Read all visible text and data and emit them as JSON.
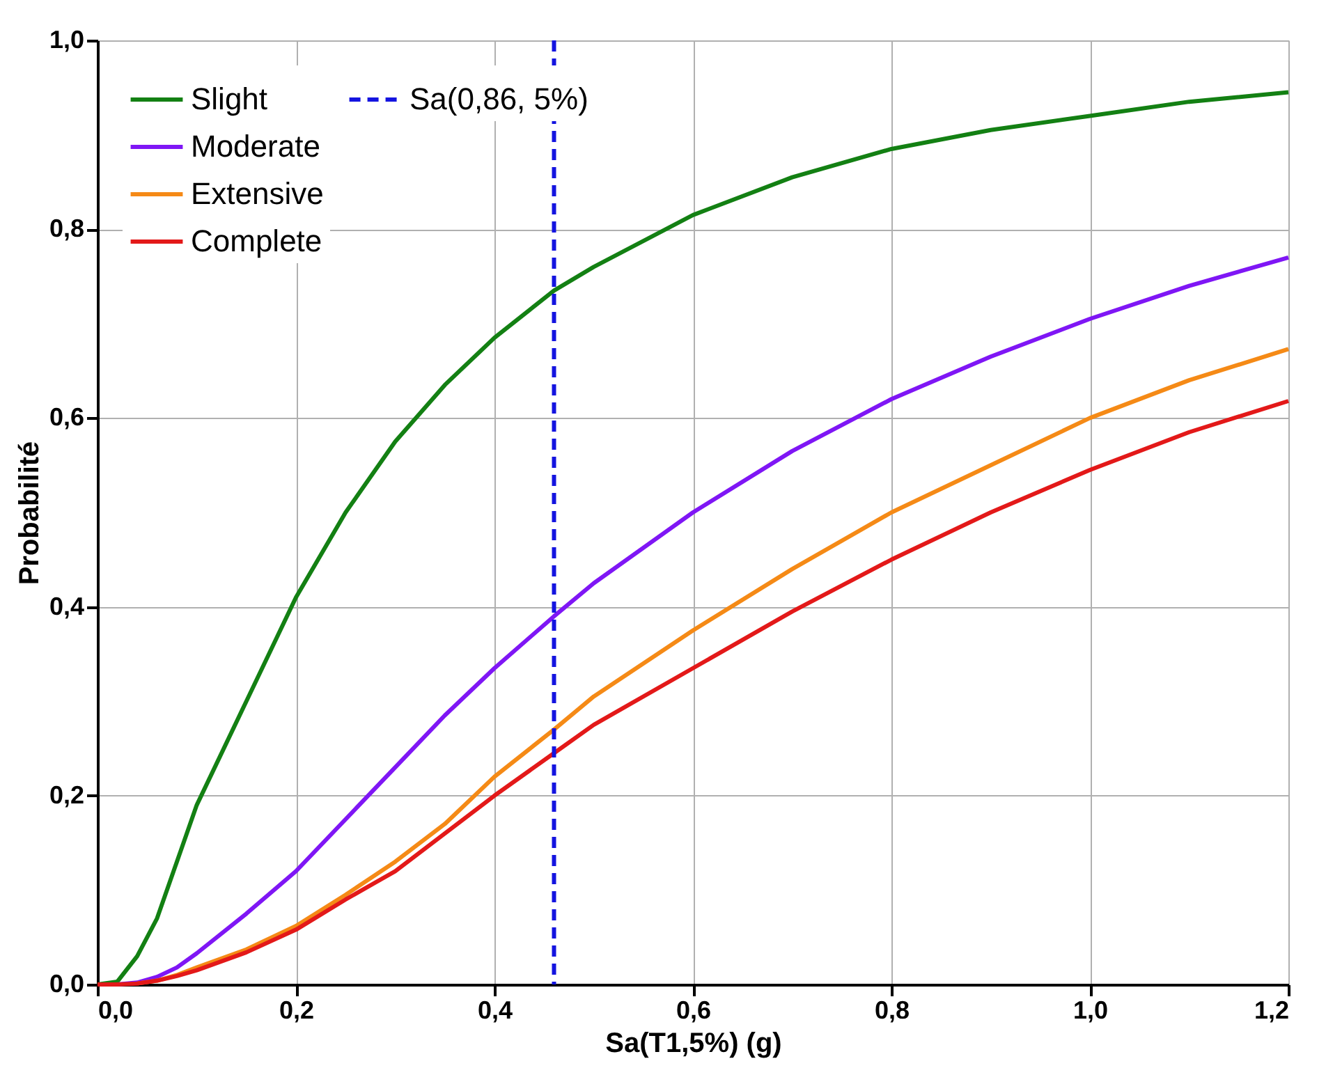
{
  "chart_data": {
    "type": "line",
    "xlabel": "Sa(T1,5%) (g)",
    "ylabel": "Probabilité",
    "xlim": [
      0,
      1.2
    ],
    "ylim": [
      0,
      1
    ],
    "xticks": [
      {
        "value": 0,
        "label": "0,0"
      },
      {
        "value": 0.2,
        "label": "0,2"
      },
      {
        "value": 0.4,
        "label": "0,4"
      },
      {
        "value": 0.6,
        "label": "0,6"
      },
      {
        "value": 0.8,
        "label": "0,8"
      },
      {
        "value": 1.0,
        "label": "1,0"
      },
      {
        "value": 1.2,
        "label": "1,2"
      }
    ],
    "yticks": [
      {
        "value": 0,
        "label": "0,0"
      },
      {
        "value": 0.2,
        "label": "0,2"
      },
      {
        "value": 0.4,
        "label": "0,4"
      },
      {
        "value": 0.6,
        "label": "0,6"
      },
      {
        "value": 0.8,
        "label": "0,8"
      },
      {
        "value": 1.0,
        "label": "1,0"
      }
    ],
    "x": [
      0,
      0.02,
      0.04,
      0.06,
      0.08,
      0.1,
      0.15,
      0.2,
      0.25,
      0.3,
      0.35,
      0.4,
      0.46,
      0.5,
      0.6,
      0.7,
      0.8,
      0.9,
      1.0,
      1.1,
      1.2
    ],
    "series": [
      {
        "name": "Slight",
        "color": "#138013",
        "values": [
          0,
          0.003,
          0.03,
          0.07,
          0.13,
          0.19,
          0.3,
          0.41,
          0.5,
          0.575,
          0.635,
          0.685,
          0.735,
          0.76,
          0.815,
          0.855,
          0.885,
          0.905,
          0.92,
          0.935,
          0.945
        ]
      },
      {
        "name": "Moderate",
        "color": "#7f16f5",
        "values": [
          0,
          0,
          0.002,
          0.008,
          0.018,
          0.033,
          0.075,
          0.12,
          0.175,
          0.23,
          0.285,
          0.335,
          0.39,
          0.425,
          0.5,
          0.565,
          0.62,
          0.665,
          0.705,
          0.74,
          0.77
        ]
      },
      {
        "name": "Extensive",
        "color": "#f58a16",
        "values": [
          null,
          null,
          0.001,
          0.004,
          0.01,
          0.018,
          0.037,
          0.062,
          0.095,
          0.13,
          0.17,
          0.22,
          0.27,
          0.305,
          0.375,
          0.44,
          0.5,
          0.55,
          0.6,
          0.64,
          0.673
        ]
      },
      {
        "name": "Complete",
        "color": "#e31919",
        "values": [
          0,
          0,
          0.001,
          0.004,
          0.009,
          0.015,
          0.034,
          0.058,
          0.09,
          0.12,
          0.16,
          0.2,
          0.245,
          0.275,
          0.335,
          0.395,
          0.45,
          0.5,
          0.545,
          0.585,
          0.618
        ]
      }
    ],
    "ref_lines": [
      {
        "axis": "x",
        "value": 0.46,
        "label": "Sa(0,86, 5%)",
        "color": "#1414e0",
        "line_style": "dashed"
      }
    ],
    "grid": true,
    "legend": "top left",
    "marker": "none",
    "line_style": "solid"
  }
}
